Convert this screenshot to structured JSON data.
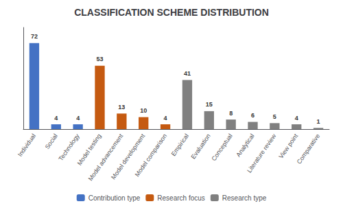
{
  "chart_data": {
    "type": "bar",
    "title": "CLASSIFICATION SCHEME DISTRIBUTION",
    "categories": [
      "Individual",
      "Social",
      "Technology",
      "Model testing",
      "Model advancement",
      "Model development",
      "Model comparison",
      "Empirical",
      "Evaluation",
      "Conceptual",
      "Analytical",
      "Literature review",
      "View point",
      "Comparative"
    ],
    "series": [
      {
        "name": "Contribution type",
        "color": "#4472c4",
        "values": [
          72,
          4,
          4,
          null,
          null,
          null,
          null,
          null,
          null,
          null,
          null,
          null,
          null,
          null
        ]
      },
      {
        "name": "Research focus",
        "color": "#c55a11",
        "values": [
          null,
          null,
          null,
          53,
          13,
          10,
          4,
          null,
          null,
          null,
          null,
          null,
          null,
          null
        ]
      },
      {
        "name": "Research type",
        "color": "#808080",
        "values": [
          null,
          null,
          null,
          null,
          null,
          null,
          null,
          41,
          15,
          8,
          6,
          5,
          4,
          1
        ]
      }
    ],
    "stacked": true,
    "ylim": [
      0,
      85
    ],
    "grid": false,
    "tick_labels": "x",
    "data_labels": true,
    "legend": "bottom"
  }
}
